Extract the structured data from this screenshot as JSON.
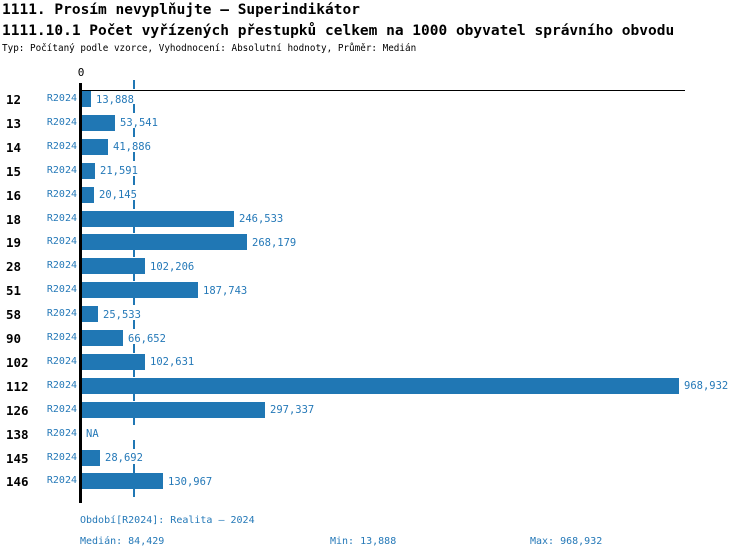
{
  "header": {
    "title_line1": "1111. Prosím nevyplňujte – Superindikátor",
    "title_line2": "1111.10.1 Počet vyřízených přestupků celkem na 1000 obyvatel správního obvodu",
    "meta_line": "Typ: Počítaný podle vzorce, Vyhodnocení: Absolutní hodnoty, Průměr: Medián"
  },
  "chart_data": {
    "type": "bar",
    "orientation": "horizontal",
    "title": "1111.10.1 Počet vyřízených přestupků celkem na 1000 obyvatel správního obvodu",
    "categories": [
      "12",
      "13",
      "14",
      "15",
      "16",
      "18",
      "19",
      "28",
      "51",
      "58",
      "90",
      "102",
      "112",
      "126",
      "138",
      "145",
      "146"
    ],
    "series": [
      {
        "name": "R2024",
        "values": [
          13888,
          53541,
          41886,
          21591,
          20145,
          246533,
          268179,
          102206,
          187743,
          25533,
          66652,
          102631,
          968932,
          297337,
          null,
          28692,
          130967
        ],
        "value_labels": [
          "13,888",
          "53,541",
          "41,886",
          "21,591",
          "20,145",
          "246,533",
          "268,179",
          "102,206",
          "187,743",
          "25,533",
          "66,652",
          "102,631",
          "968,932",
          "297,337",
          "NA",
          "28,692",
          "130,967"
        ]
      }
    ],
    "na_label": "NA",
    "x_axis": {
      "min": 0,
      "max": 968932,
      "zero_tick_label": "0"
    },
    "median_line_value": 84429,
    "stats": {
      "median": 84429,
      "min": 13888,
      "max": 968932
    },
    "legend": "none",
    "grid": "dashed vertical median line only",
    "colors": {
      "bar": "#2077b4",
      "blue_text": "#2579b8",
      "axis": "#000000"
    }
  },
  "footer": {
    "period_label": "Období[R2024]: Realita – 2024",
    "median_label": "Medián: 84,429",
    "min_label": "Min: 13,888",
    "max_label": "Max: 968,932"
  }
}
